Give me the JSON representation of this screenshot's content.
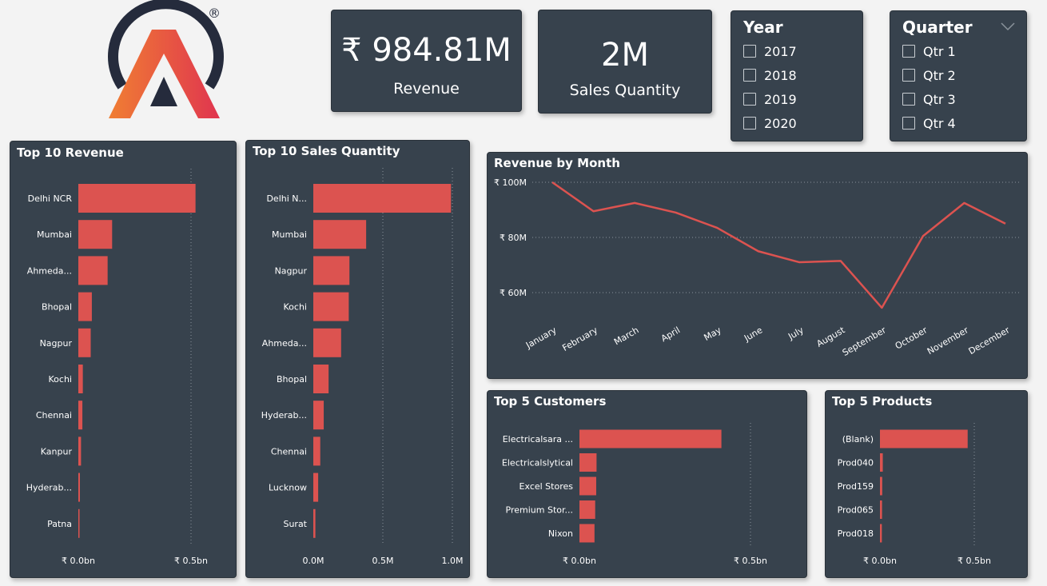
{
  "colors": {
    "card_bg": "#37424d",
    "bar": "#dc5350",
    "text": "#ffffff",
    "grid": "#8a939b",
    "logo_dark": "#252b3c",
    "logo_orange": "#f07e33",
    "logo_red": "#e0354f"
  },
  "logo": {
    "registered": "®"
  },
  "kpis": [
    {
      "value": "₹ 984.81M",
      "label": "Revenue"
    },
    {
      "value": "2M",
      "label": "Sales Quantity"
    }
  ],
  "year_slicer": {
    "title": "Year",
    "options": [
      "2017",
      "2018",
      "2019",
      "2020"
    ]
  },
  "quarter_slicer": {
    "title": "Quarter",
    "options": [
      "Qtr 1",
      "Qtr 2",
      "Qtr 3",
      "Qtr 4"
    ]
  },
  "chart_data": [
    {
      "type": "bar",
      "orientation": "horizontal",
      "title": "Top 10 Revenue",
      "categories": [
        "Delhi NCR",
        "Mumbai",
        "Ahmeda...",
        "Bhopal",
        "Nagpur",
        "Kochi",
        "Chennai",
        "Kanpur",
        "Hyderab...",
        "Patna"
      ],
      "values": [
        0.52,
        0.15,
        0.13,
        0.06,
        0.055,
        0.02,
        0.018,
        0.012,
        0.007,
        0.003
      ],
      "unit": "bn",
      "xlim": [
        0,
        0.5
      ],
      "tick_labels": [
        "₹ 0.0bn",
        "₹ 0.5bn"
      ]
    },
    {
      "type": "bar",
      "orientation": "horizontal",
      "title": "Top 10 Sales Quantity",
      "categories": [
        "Delhi N...",
        "Mumbai",
        "Nagpur",
        "Kochi",
        "Ahmeda...",
        "Bhopal",
        "Hyderab...",
        "Chennai",
        "Lucknow",
        "Surat"
      ],
      "values": [
        0.99,
        0.38,
        0.26,
        0.255,
        0.2,
        0.11,
        0.075,
        0.05,
        0.035,
        0.015
      ],
      "unit": "M",
      "xlim": [
        0,
        1.0
      ],
      "tick_labels": [
        "0.0M",
        "0.5M",
        "1.0M"
      ]
    },
    {
      "type": "line",
      "title": "Revenue by Month",
      "categories": [
        "January",
        "February",
        "March",
        "April",
        "May",
        "June",
        "July",
        "August",
        "September",
        "October",
        "November",
        "December"
      ],
      "values": [
        100,
        89.5,
        92.5,
        89,
        83.5,
        75,
        71,
        71.5,
        54.5,
        80.5,
        92.5,
        85
      ],
      "unit": "M",
      "ylim": [
        52,
        100
      ],
      "yticks": [
        100,
        80,
        60
      ],
      "ytick_labels": [
        "₹ 100M",
        "₹ 80M",
        "₹ 60M"
      ],
      "grid": true
    },
    {
      "type": "bar",
      "orientation": "horizontal",
      "title": "Top 5 Customers",
      "categories": [
        "Electricalsara ...",
        "Electricalslytical",
        "Excel Stores",
        "Premium Stor...",
        "Nixon"
      ],
      "values": [
        0.415,
        0.05,
        0.049,
        0.046,
        0.044
      ],
      "unit": "bn",
      "xlim": [
        0,
        0.5
      ],
      "tick_labels": [
        "₹ 0.0bn",
        "₹ 0.5bn"
      ]
    },
    {
      "type": "bar",
      "orientation": "horizontal",
      "title": "Top 5 Products",
      "categories": [
        "(Blank)",
        "Prod040",
        "Prod159",
        "Prod065",
        "Prod018"
      ],
      "values": [
        0.465,
        0.015,
        0.012,
        0.011,
        0.01
      ],
      "unit": "bn",
      "xlim": [
        0,
        0.5
      ],
      "tick_labels": [
        "₹ 0.0bn",
        "₹ 0.5bn"
      ]
    }
  ]
}
